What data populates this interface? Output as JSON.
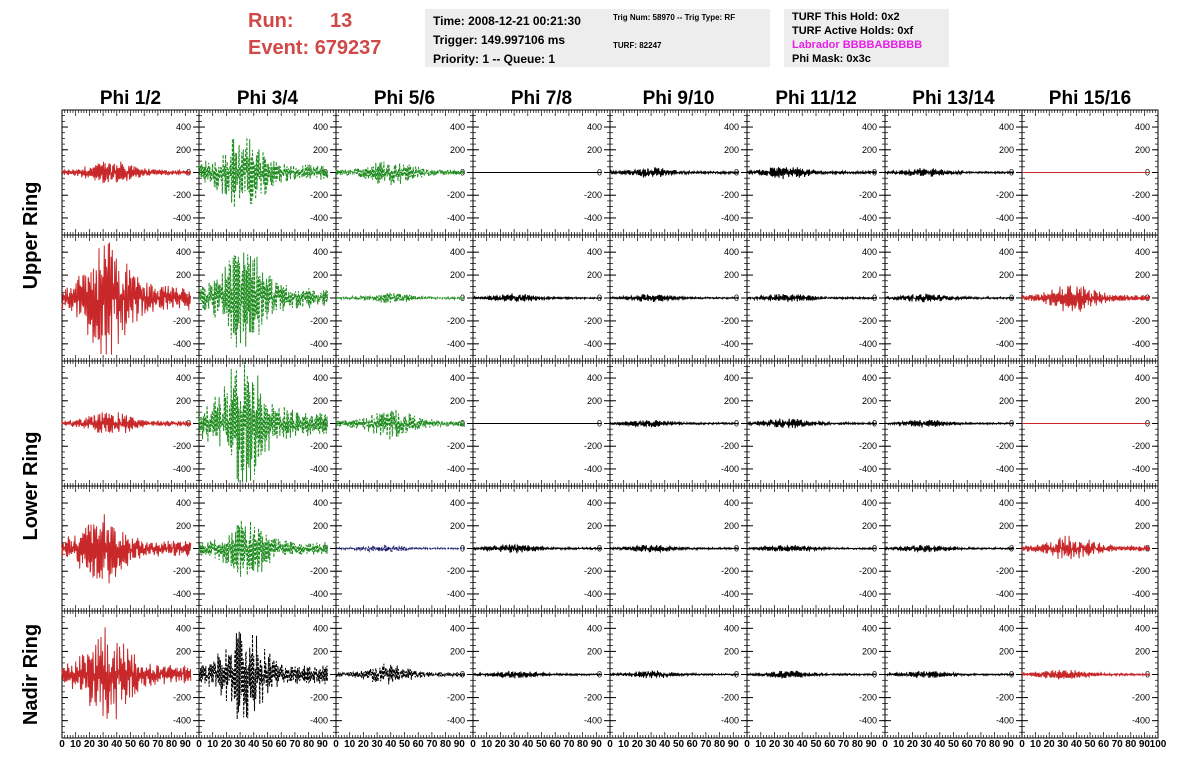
{
  "header": {
    "run_label": "Run:",
    "run_value": "13",
    "event_label": "Event:",
    "event_value": "679237"
  },
  "info_time": {
    "line1": "Time: 2008-12-21 00:21:30",
    "line2": "Trigger: 149.997106 ms",
    "line3": "Priority: 1 -- Queue: 1"
  },
  "info_trig": {
    "line1": "Trig Num: 58970 -- Trig Type: RF",
    "line2": "TURF: 82247"
  },
  "info_turf": {
    "line1": "TURF This Hold: 0x2",
    "line2": "TURF Active Holds: 0xf",
    "line3": "Labrador BBBBABBBBB",
    "line4": "Phi Mask: 0x3c"
  },
  "colors": {
    "red": "#c8282a",
    "green": "#1e8c1e",
    "black": "#000000",
    "blue": "#20206e"
  },
  "chart_data": {
    "type": "line",
    "columns": [
      "Phi 1/2",
      "Phi 3/4",
      "Phi 5/6",
      "Phi 7/8",
      "Phi 9/10",
      "Phi 11/12",
      "Phi 13/14",
      "Phi 15/16"
    ],
    "ring_labels": [
      {
        "text": "Upper Ring",
        "rows": [
          0,
          1
        ]
      },
      {
        "text": "Lower Ring",
        "rows": [
          2,
          3
        ]
      },
      {
        "text": "Nadir Ring",
        "rows": [
          4
        ]
      }
    ],
    "ylim": [
      -550,
      550
    ],
    "yticks": [
      -400,
      -200,
      0,
      200,
      400
    ],
    "xlim": [
      0,
      100
    ],
    "xticks": [
      0,
      10,
      20,
      30,
      40,
      50,
      60,
      70,
      80,
      90,
      100
    ],
    "xticks_final": [
      0,
      10,
      20,
      30,
      40,
      50,
      60,
      70,
      80,
      90,
      100
    ],
    "x_start": 0,
    "x_end": 94,
    "panels": [
      [
        {
          "color": "red",
          "amp": 100,
          "peak": 36,
          "dash": false
        },
        {
          "color": "green",
          "amp": 300,
          "peak": 32,
          "dash": true
        },
        {
          "color": "green",
          "amp": 100,
          "peak": 40,
          "dash": true
        },
        {
          "color": "black",
          "amp": 0,
          "peak": 0,
          "dash": false
        },
        {
          "color": "black",
          "amp": 40,
          "peak": 30,
          "dash": false
        },
        {
          "color": "black",
          "amp": 50,
          "peak": 28,
          "dash": false
        },
        {
          "color": "black",
          "amp": 35,
          "peak": 30,
          "dash": false
        },
        {
          "color": "red",
          "amp": 0,
          "peak": 0,
          "dash": false
        }
      ],
      [
        {
          "color": "red",
          "amp": 450,
          "peak": 33,
          "dash": false
        },
        {
          "color": "green",
          "amp": 380,
          "peak": 33,
          "dash": true
        },
        {
          "color": "green",
          "amp": 40,
          "peak": 40,
          "dash": true
        },
        {
          "color": "black",
          "amp": 35,
          "peak": 30,
          "dash": false
        },
        {
          "color": "black",
          "amp": 30,
          "peak": 30,
          "dash": false
        },
        {
          "color": "black",
          "amp": 35,
          "peak": 30,
          "dash": false
        },
        {
          "color": "black",
          "amp": 35,
          "peak": 30,
          "dash": false
        },
        {
          "color": "red",
          "amp": 110,
          "peak": 38,
          "dash": false
        }
      ],
      [
        {
          "color": "red",
          "amp": 100,
          "peak": 34,
          "dash": false
        },
        {
          "color": "green",
          "amp": 480,
          "peak": 32,
          "dash": true
        },
        {
          "color": "green",
          "amp": 120,
          "peak": 40,
          "dash": true
        },
        {
          "color": "black",
          "amp": 0,
          "peak": 0,
          "dash": false
        },
        {
          "color": "black",
          "amp": 30,
          "peak": 30,
          "dash": false
        },
        {
          "color": "black",
          "amp": 40,
          "peak": 28,
          "dash": false
        },
        {
          "color": "black",
          "amp": 30,
          "peak": 30,
          "dash": false
        },
        {
          "color": "red",
          "amp": 0,
          "peak": 0,
          "dash": false
        }
      ],
      [
        {
          "color": "red",
          "amp": 280,
          "peak": 30,
          "dash": false
        },
        {
          "color": "green",
          "amp": 230,
          "peak": 35,
          "dash": true
        },
        {
          "color": "blue",
          "amp": 30,
          "peak": 35,
          "dash": true
        },
        {
          "color": "black",
          "amp": 35,
          "peak": 30,
          "dash": false
        },
        {
          "color": "black",
          "amp": 30,
          "peak": 30,
          "dash": false
        },
        {
          "color": "black",
          "amp": 30,
          "peak": 30,
          "dash": false
        },
        {
          "color": "black",
          "amp": 30,
          "peak": 30,
          "dash": false
        },
        {
          "color": "red",
          "amp": 100,
          "peak": 37,
          "dash": false
        }
      ],
      [
        {
          "color": "red",
          "amp": 350,
          "peak": 34,
          "dash": false
        },
        {
          "color": "black",
          "amp": 350,
          "peak": 33,
          "dash": true
        },
        {
          "color": "black",
          "amp": 80,
          "peak": 38,
          "dash": true
        },
        {
          "color": "black",
          "amp": 30,
          "peak": 30,
          "dash": false
        },
        {
          "color": "black",
          "amp": 30,
          "peak": 30,
          "dash": false
        },
        {
          "color": "black",
          "amp": 30,
          "peak": 30,
          "dash": false
        },
        {
          "color": "black",
          "amp": 30,
          "peak": 30,
          "dash": false
        },
        {
          "color": "red",
          "amp": 40,
          "peak": 30,
          "dash": false
        }
      ]
    ]
  }
}
